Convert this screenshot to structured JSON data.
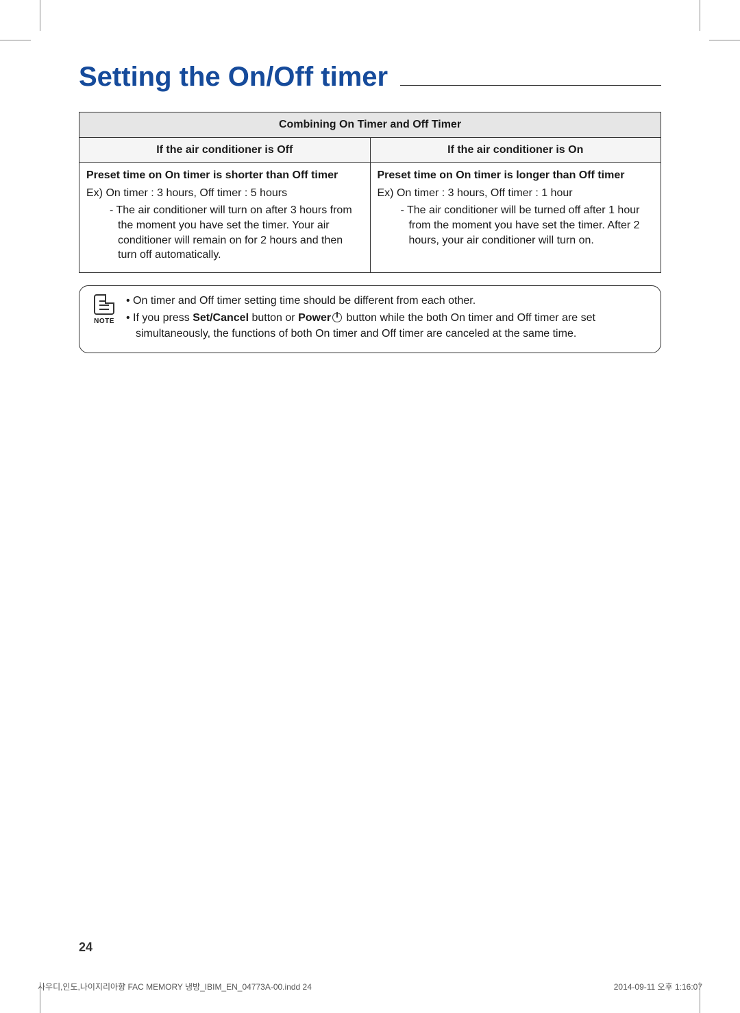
{
  "title": "Setting the On/Off timer",
  "table": {
    "header": "Combining On Timer and Off Timer",
    "col_left_header": "If the air conditioner is Off",
    "col_right_header": "If the air conditioner is On",
    "left": {
      "preset": "Preset time on On timer is shorter than Off timer",
      "example": "Ex) On timer : 3 hours, Off timer : 5 hours",
      "detail": "- The air conditioner will turn on after 3 hours from the moment you have set the timer. Your air conditioner will remain on for 2 hours and then turn off automatically."
    },
    "right": {
      "preset": "Preset time on On timer is longer than Off timer",
      "example": "Ex) On timer : 3 hours, Off timer : 1 hour",
      "detail": "- The air conditioner will be turned off after 1 hour from the moment you have set the timer. After 2 hours, your air conditioner will turn on."
    }
  },
  "note": {
    "label": "NOTE",
    "items": {
      "b1": "On timer and Off timer setting time should be different from each other.",
      "b2_pre": "If you press ",
      "b2_setcancel": "Set/Cancel",
      "b2_mid1": " button or ",
      "b2_power": "Power",
      "b2_post": " button while the both On timer and Off timer are set simultaneously, the functions of both On timer and Off timer are canceled at the same time."
    }
  },
  "page_number": "24",
  "footer_left": "사우디,인도,나이지리아향 FAC MEMORY 냉방_IBIM_EN_04773A-00.indd   24",
  "footer_right": "2014-09-11   오후 1:16:07",
  "colors": {
    "title": "#164b9b",
    "border": "#333333",
    "header_bg": "#e6e6e6",
    "subheader_bg": "#f5f5f5"
  }
}
